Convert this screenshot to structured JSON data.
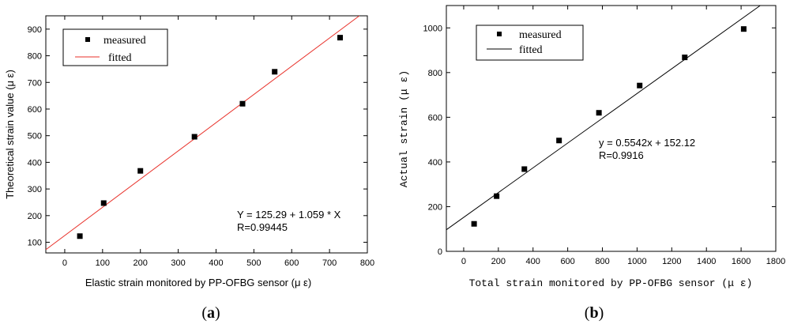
{
  "chart_data": [
    {
      "type": "scatter",
      "panel_label": "a",
      "xlabel": "Elastic strain monitored by PP-OFBG sensor (μ ε)",
      "ylabel": "Theoretical strain value (μ ε)",
      "xlim": [
        -50,
        800
      ],
      "ylim": [
        60,
        950
      ],
      "xticks": [
        0,
        100,
        200,
        300,
        400,
        500,
        600,
        700,
        800
      ],
      "yticks": [
        100,
        200,
        300,
        400,
        500,
        600,
        700,
        800,
        900
      ],
      "legend": "top-left",
      "series": [
        {
          "name": "measured",
          "kind": "points",
          "color": "#000000",
          "x": [
            40,
            103,
            200,
            343,
            470,
            555,
            728
          ],
          "y": [
            123,
            247,
            368,
            496,
            620,
            740,
            868
          ]
        },
        {
          "name": "fitted",
          "kind": "line",
          "color": "#e8312a",
          "intercept": 125.29,
          "slope": 1.059
        }
      ],
      "annotations": [
        "Y = 125.29 + 1.059 * X",
        "R=0.99445"
      ]
    },
    {
      "type": "scatter",
      "panel_label": "b",
      "xlabel": "Total strain monitored by PP-OFBG sensor (μ ε)",
      "ylabel": "Actual strain (μ ε)",
      "xlim": [
        -100,
        1800
      ],
      "ylim": [
        0,
        1100
      ],
      "xticks": [
        0,
        200,
        400,
        600,
        800,
        1000,
        1200,
        1400,
        1600,
        1800
      ],
      "yticks": [
        0,
        200,
        400,
        600,
        800,
        1000
      ],
      "legend": "top-left",
      "series": [
        {
          "name": "measured",
          "kind": "points",
          "color": "#000000",
          "x": [
            60,
            190,
            350,
            550,
            780,
            1015,
            1275,
            1615
          ],
          "y": [
            123,
            247,
            368,
            496,
            620,
            742,
            868,
            995
          ]
        },
        {
          "name": "fitted",
          "kind": "line",
          "color": "#000000",
          "intercept": 152.12,
          "slope": 0.5542
        }
      ],
      "annotations": [
        "y = 0.5542x + 152.12",
        "R=0.9916"
      ]
    }
  ]
}
